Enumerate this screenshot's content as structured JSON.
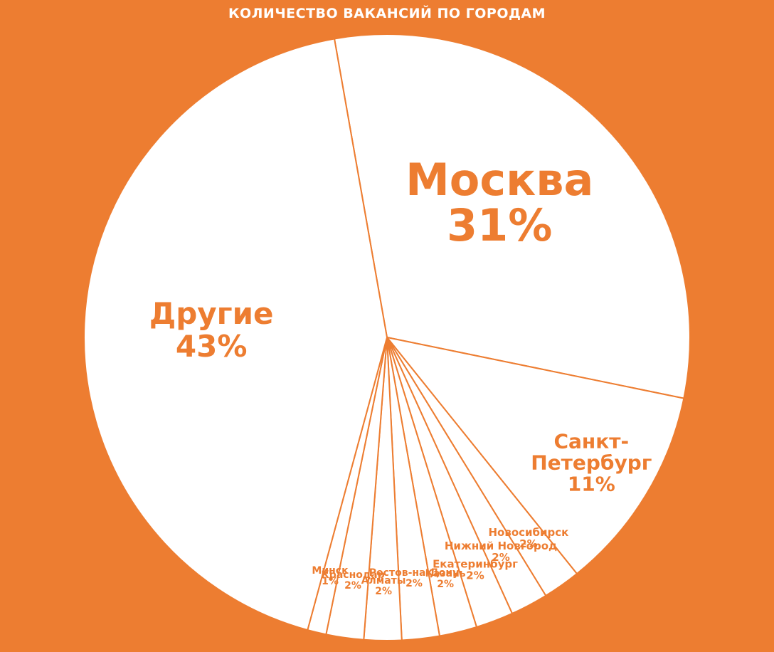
{
  "chart_data": {
    "type": "pie",
    "title": "КОЛИЧЕСТВО ВАКАНСИЙ ПО ГОРОДАМ",
    "start_angle_deg": -10,
    "direction": "clockwise",
    "slices": [
      {
        "name": "Москва",
        "lines": [
          "Москва"
        ],
        "percent": 31,
        "label": "31%"
      },
      {
        "name": "Санкт-Петербург",
        "lines": [
          "Санкт-",
          "Петербург"
        ],
        "percent": 11,
        "label": "11%"
      },
      {
        "name": "Новосибирск",
        "lines": [
          "Новосибирск"
        ],
        "percent": 2,
        "label": "2%"
      },
      {
        "name": "Нижний Новгород",
        "lines": [
          "Нижний Новгород"
        ],
        "percent": 2,
        "label": "2%"
      },
      {
        "name": "Екатеринбург",
        "lines": [
          "Екатеринбург"
        ],
        "percent": 2,
        "label": "2%"
      },
      {
        "name": "Казань",
        "lines": [
          "Казань"
        ],
        "percent": 2,
        "label": "2%"
      },
      {
        "name": "Ростов-на-Дону",
        "lines": [
          "Ростов-на-Дону"
        ],
        "percent": 2,
        "label": "2%"
      },
      {
        "name": "Алматы",
        "lines": [
          "Алматы"
        ],
        "percent": 2,
        "label": "2%"
      },
      {
        "name": "Краснодар",
        "lines": [
          "Краснодар"
        ],
        "percent": 2,
        "label": "2%"
      },
      {
        "name": "Минск",
        "lines": [
          "Минск"
        ],
        "percent": 1,
        "label": "1%"
      },
      {
        "name": "Другие",
        "lines": [
          "Другие"
        ],
        "percent": 43,
        "label": "43%"
      }
    ],
    "colors": {
      "background": "#ED7D31",
      "slice_fill": "#FFFFFF",
      "slice_stroke": "#ED7D31",
      "label": "#ED7D31",
      "title": "#FFFFFF"
    },
    "legend": "none"
  }
}
